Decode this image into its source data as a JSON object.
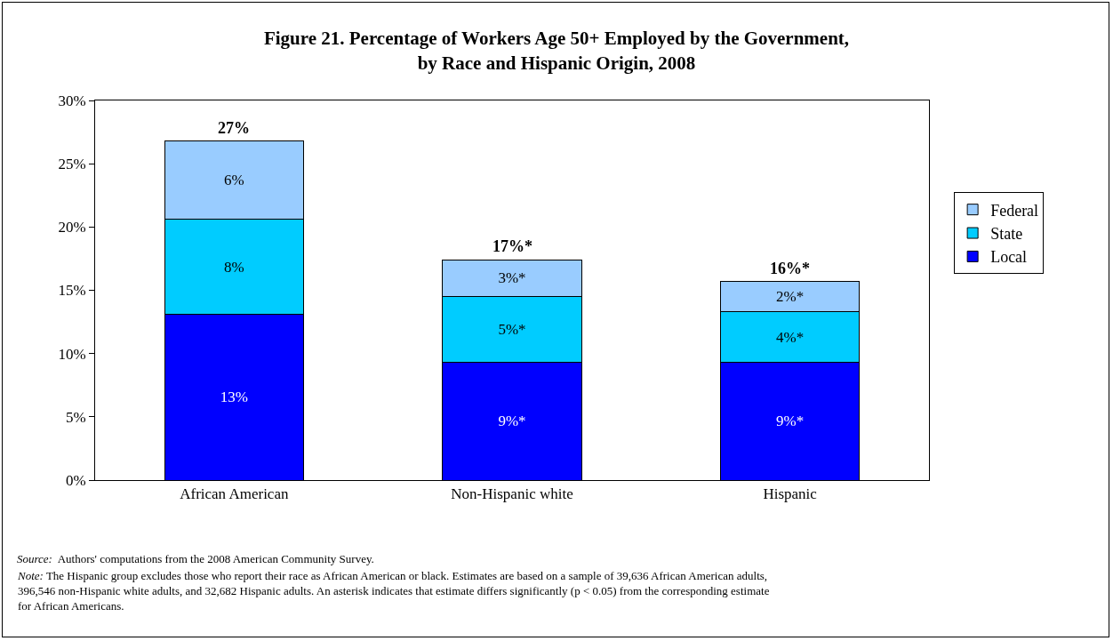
{
  "chart_data": {
    "type": "bar",
    "title": "Figure 21. Percentage of Workers Age 50+ Employed by the Government,\nby Race and Hispanic Origin, 2008",
    "categories": [
      "African American",
      "Non-Hispanic white",
      "Hispanic"
    ],
    "stacked": true,
    "series": [
      {
        "name": "Local",
        "color": "#0000ff",
        "values": [
          13.1,
          9.3,
          9.3
        ],
        "value_labels": [
          "13%",
          "9%*",
          "9%*"
        ]
      },
      {
        "name": "State",
        "color": "#00ccff",
        "values": [
          7.5,
          5.2,
          4.0
        ],
        "value_labels": [
          "8%",
          "5%*",
          "4%*"
        ]
      },
      {
        "name": "Federal",
        "color": "#99ccff",
        "values": [
          6.2,
          2.9,
          2.4
        ],
        "value_labels": [
          "6%",
          "3%*",
          "2%*"
        ]
      }
    ],
    "totals": [
      "27%",
      "17%*",
      "16%*"
    ],
    "ylim": [
      0,
      30
    ],
    "yticks": [
      {
        "value": 0,
        "label": "0%"
      },
      {
        "value": 5,
        "label": "5%"
      },
      {
        "value": 10,
        "label": "10%"
      },
      {
        "value": 15,
        "label": "15%"
      },
      {
        "value": 20,
        "label": "20%"
      },
      {
        "value": 25,
        "label": "25%"
      },
      {
        "value": 30,
        "label": "30%"
      }
    ],
    "grid": false,
    "legend": "right",
    "annotations": [
      "Source:  Authors' computations from the 2008 American Community Survey.",
      "Note: The Hispanic group excludes those who report their race as African American or black. Estimates are based on a sample of 39,636 African American adults,\n396,546 non-Hispanic white adults, and 32,682 Hispanic adults. An asterisk indicates that estimate differs significantly (p < 0.05) from the corresponding estimate\nfor African Americans."
    ]
  }
}
